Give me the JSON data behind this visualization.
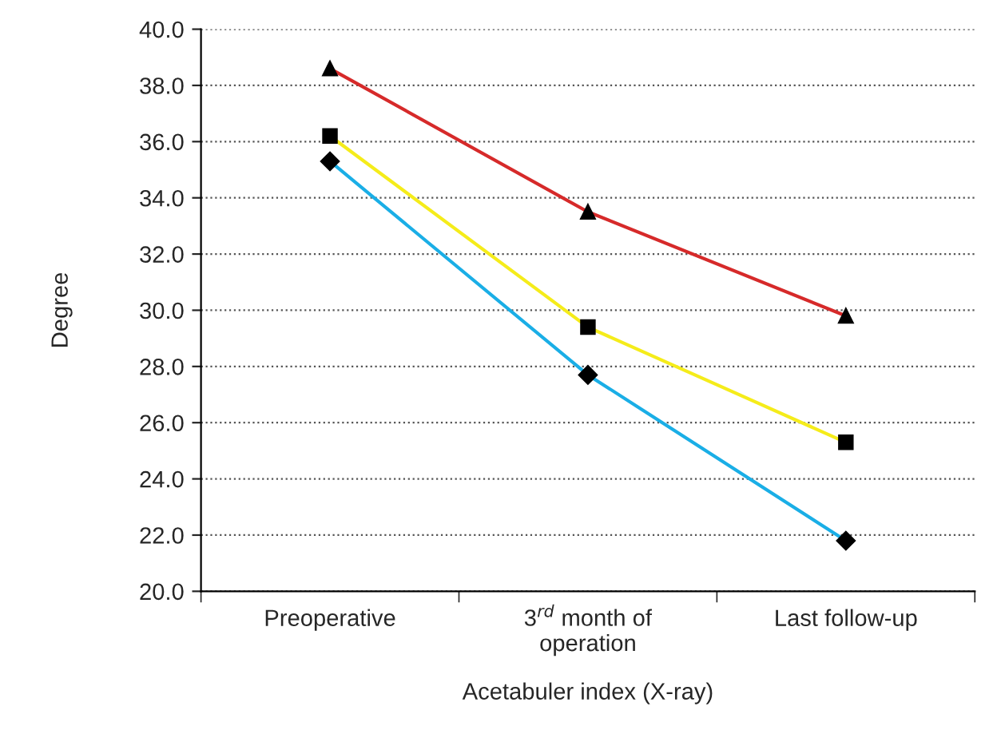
{
  "chart_data": {
    "type": "line",
    "xlabel": "Acetabuler index (X-ray)",
    "ylabel": "Degree",
    "categories": [
      "Preoperative",
      "3$^{rd}$ month of\noperation",
      "Last follow-up"
    ],
    "series": [
      {
        "color": "#d62a2a",
        "marker": "triangle",
        "values": [
          38.6,
          33.5,
          29.8
        ]
      },
      {
        "color": "#f5ec1a",
        "marker": "square",
        "values": [
          36.2,
          29.4,
          25.3
        ]
      },
      {
        "color": "#1aaee6",
        "marker": "diamond",
        "values": [
          35.3,
          27.7,
          21.8
        ]
      }
    ],
    "ylim": [
      20,
      40
    ],
    "yticks": [
      {
        "value": 20,
        "label": "20.0"
      },
      {
        "value": 22,
        "label": "22.0"
      },
      {
        "value": 24,
        "label": "24.0"
      },
      {
        "value": 26,
        "label": "26.0"
      },
      {
        "value": 28,
        "label": "28.0"
      },
      {
        "value": 30,
        "label": "30.0"
      },
      {
        "value": 32,
        "label": "32.0"
      },
      {
        "value": 34,
        "label": "34.0"
      },
      {
        "value": 36,
        "label": "36.0"
      },
      {
        "value": 38,
        "label": "38.0"
      },
      {
        "value": 40,
        "label": "40.0"
      }
    ],
    "grid": "y",
    "legend": false,
    "line_style": "solid"
  }
}
